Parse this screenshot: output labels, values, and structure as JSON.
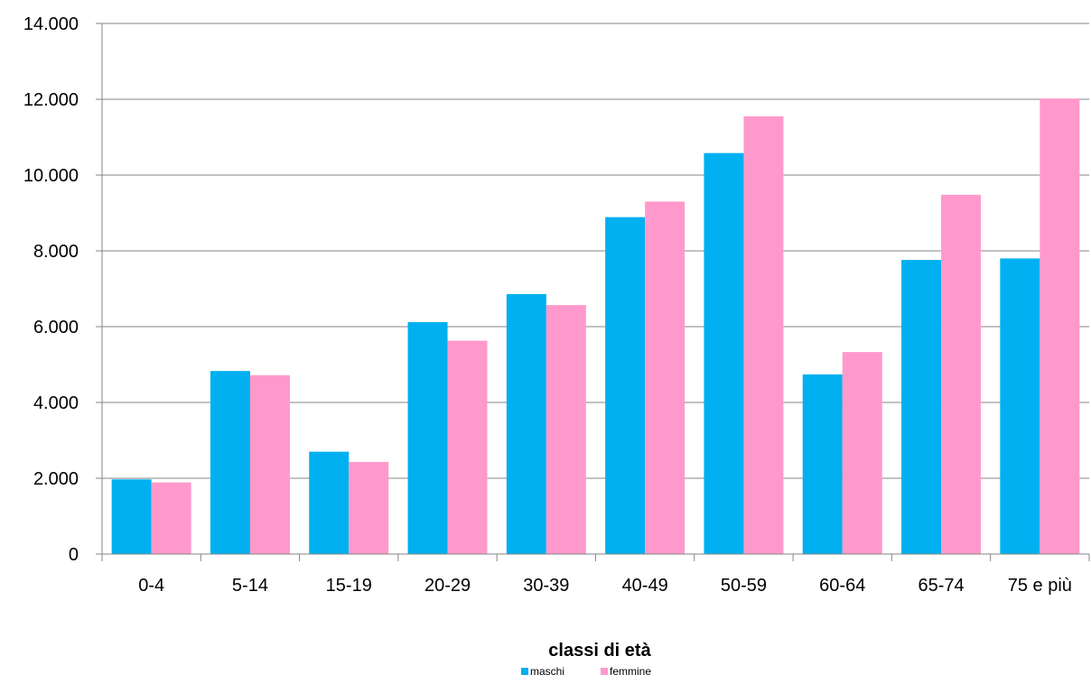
{
  "chart_data": {
    "type": "bar",
    "categories": [
      "0-4",
      "5-14",
      "15-19",
      "20-29",
      "30-39",
      "40-49",
      "50-59",
      "60-64",
      "65-74",
      "75 e più"
    ],
    "series": [
      {
        "name": "maschi",
        "color": "#00b0f0",
        "values": [
          1970,
          4830,
          2700,
          6120,
          6860,
          8890,
          10580,
          4740,
          7760,
          7800
        ]
      },
      {
        "name": "femmine",
        "color": "#ff99cc",
        "values": [
          1890,
          4720,
          2430,
          5630,
          6570,
          9300,
          11550,
          5330,
          9480,
          12020
        ]
      }
    ],
    "ylim": [
      0,
      14000
    ],
    "yticks": [
      0,
      2000,
      4000,
      6000,
      8000,
      10000,
      12000,
      14000
    ],
    "ytick_labels": [
      "0",
      "2.000",
      "4.000",
      "6.000",
      "8.000",
      "10.000",
      "12.000",
      "14.000"
    ],
    "xlabel": "classi di età",
    "ylabel": "",
    "grid": true,
    "legend_position": "bottom"
  }
}
